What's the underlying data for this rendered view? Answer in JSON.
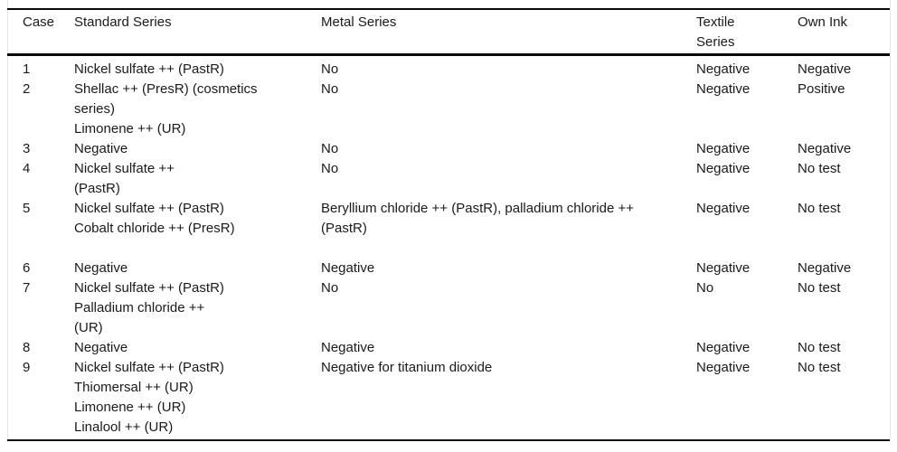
{
  "table": {
    "header": {
      "case": "Case",
      "standard": "Standard Series",
      "metal": "Metal Series",
      "textile": "Textile\nSeries",
      "own_ink": "Own Ink"
    },
    "rows": [
      {
        "case": "1",
        "standard": "Nickel sulfate ++ (PastR)",
        "metal": "No",
        "textile": "Negative",
        "own_ink": "Negative"
      },
      {
        "case": "2",
        "standard": "Shellac ++ (PresR) (cosmetics\nseries)\nLimonene ++ (UR)",
        "metal": "No",
        "textile": "Negative",
        "own_ink": "Positive"
      },
      {
        "case": "3",
        "standard": "Negative",
        "metal": "No",
        "textile": "Negative",
        "own_ink": "Negative"
      },
      {
        "case": "4",
        "standard": "Nickel sulfate ++\n(PastR)",
        "metal": "No",
        "textile": "Negative",
        "own_ink": "No test"
      },
      {
        "case": "5",
        "standard": "Nickel sulfate ++ (PastR)\nCobalt chloride ++ (PresR)",
        "metal": "Beryllium chloride ++ (PastR), palladium chloride ++\n(PastR)",
        "textile": "Negative",
        "own_ink": "No test"
      },
      {
        "case": "6",
        "standard": "Negative",
        "metal": "Negative",
        "textile": "Negative",
        "own_ink": "Negative"
      },
      {
        "case": "7",
        "standard": "Nickel sulfate ++ (PastR)\nPalladium chloride ++\n(UR)",
        "metal": "No",
        "textile": "No",
        "own_ink": "No test"
      },
      {
        "case": "8",
        "standard": "Negative",
        "metal": "Negative",
        "textile": "Negative",
        "own_ink": "No test"
      },
      {
        "case": "9",
        "standard": "Nickel sulfate ++ (PastR)\nThiomersal ++ (UR)\nLimonene ++ (UR)\nLinalool ++ (UR)",
        "metal": "Negative for titanium dioxide",
        "textile": "Negative",
        "own_ink": "No test"
      }
    ]
  }
}
